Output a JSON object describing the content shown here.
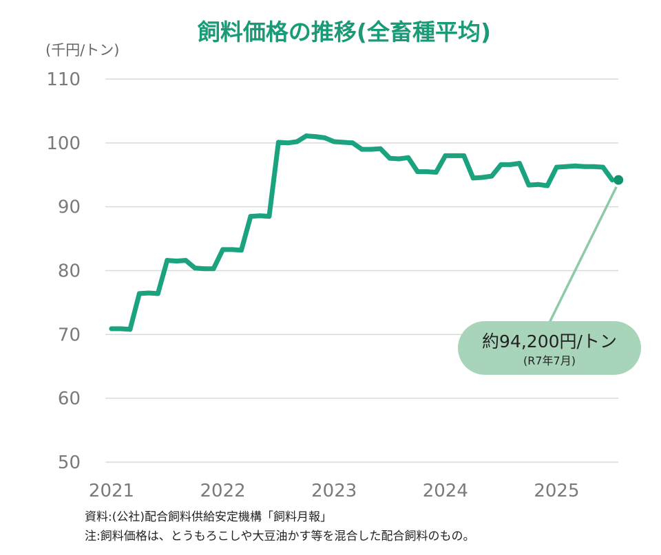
{
  "colors": {
    "line": "#1aa37e",
    "title": "#1a9a77",
    "grid": "#d9d9d9",
    "callout_fill": "#a8d5b9",
    "leader": "#8fcaa6",
    "marker": "#12936f"
  },
  "chart_data": {
    "type": "line",
    "title": "飼料価格の推移(全畜種平均)",
    "ylabel": "(千円/トン)",
    "xlabel": "",
    "ylim": [
      50,
      110
    ],
    "yticks": [
      "110",
      "100",
      "90",
      "80",
      "70",
      "60",
      "50"
    ],
    "xtick_labels": [
      "2021",
      "2022",
      "2023",
      "2024",
      "2025"
    ],
    "grid": true,
    "series": [
      {
        "x": [
          "2021-01",
          "2021-02",
          "2021-03",
          "2021-04",
          "2021-05",
          "2021-06",
          "2021-07",
          "2021-08",
          "2021-09",
          "2021-10",
          "2021-11",
          "2021-12",
          "2022-01",
          "2022-02",
          "2022-03",
          "2022-04",
          "2022-05",
          "2022-06",
          "2022-07",
          "2022-08",
          "2022-09",
          "2022-10",
          "2022-11",
          "2022-12",
          "2023-01",
          "2023-02",
          "2023-03",
          "2023-04",
          "2023-05",
          "2023-06",
          "2023-07",
          "2023-08",
          "2023-09",
          "2023-10",
          "2023-11",
          "2023-12",
          "2024-01",
          "2024-02",
          "2024-03",
          "2024-04",
          "2024-05",
          "2024-06",
          "2024-07",
          "2024-08",
          "2024-09",
          "2024-10",
          "2024-11",
          "2024-12",
          "2025-01",
          "2025-02",
          "2025-03",
          "2025-04",
          "2025-05",
          "2025-06",
          "2025-07"
        ],
        "values": [
          70.9,
          70.9,
          70.8,
          76.4,
          76.5,
          76.4,
          81.6,
          81.5,
          81.6,
          80.4,
          80.3,
          80.3,
          83.3,
          83.3,
          83.2,
          88.5,
          88.6,
          88.5,
          100.1,
          100.0,
          100.2,
          101.1,
          101.0,
          100.8,
          100.2,
          100.1,
          100.0,
          99.0,
          99.0,
          99.1,
          97.6,
          97.5,
          97.7,
          95.5,
          95.5,
          95.4,
          98.0,
          98.0,
          98.0,
          94.5,
          94.6,
          94.8,
          96.6,
          96.6,
          96.8,
          93.4,
          93.5,
          93.3,
          96.2,
          96.3,
          96.4,
          96.3,
          96.3,
          96.2,
          94.2
        ]
      }
    ],
    "annotation": {
      "main": "約94,200円/トン",
      "sub": "(R7年7月)",
      "value": 94.2,
      "x": "2025-07"
    }
  },
  "notes": [
    "資料:(公社)配合飼料供給安定機構「飼料月報」",
    "注:飼料価格は、とうもろこしや大豆油かす等を混合した配合飼料のもの。"
  ]
}
